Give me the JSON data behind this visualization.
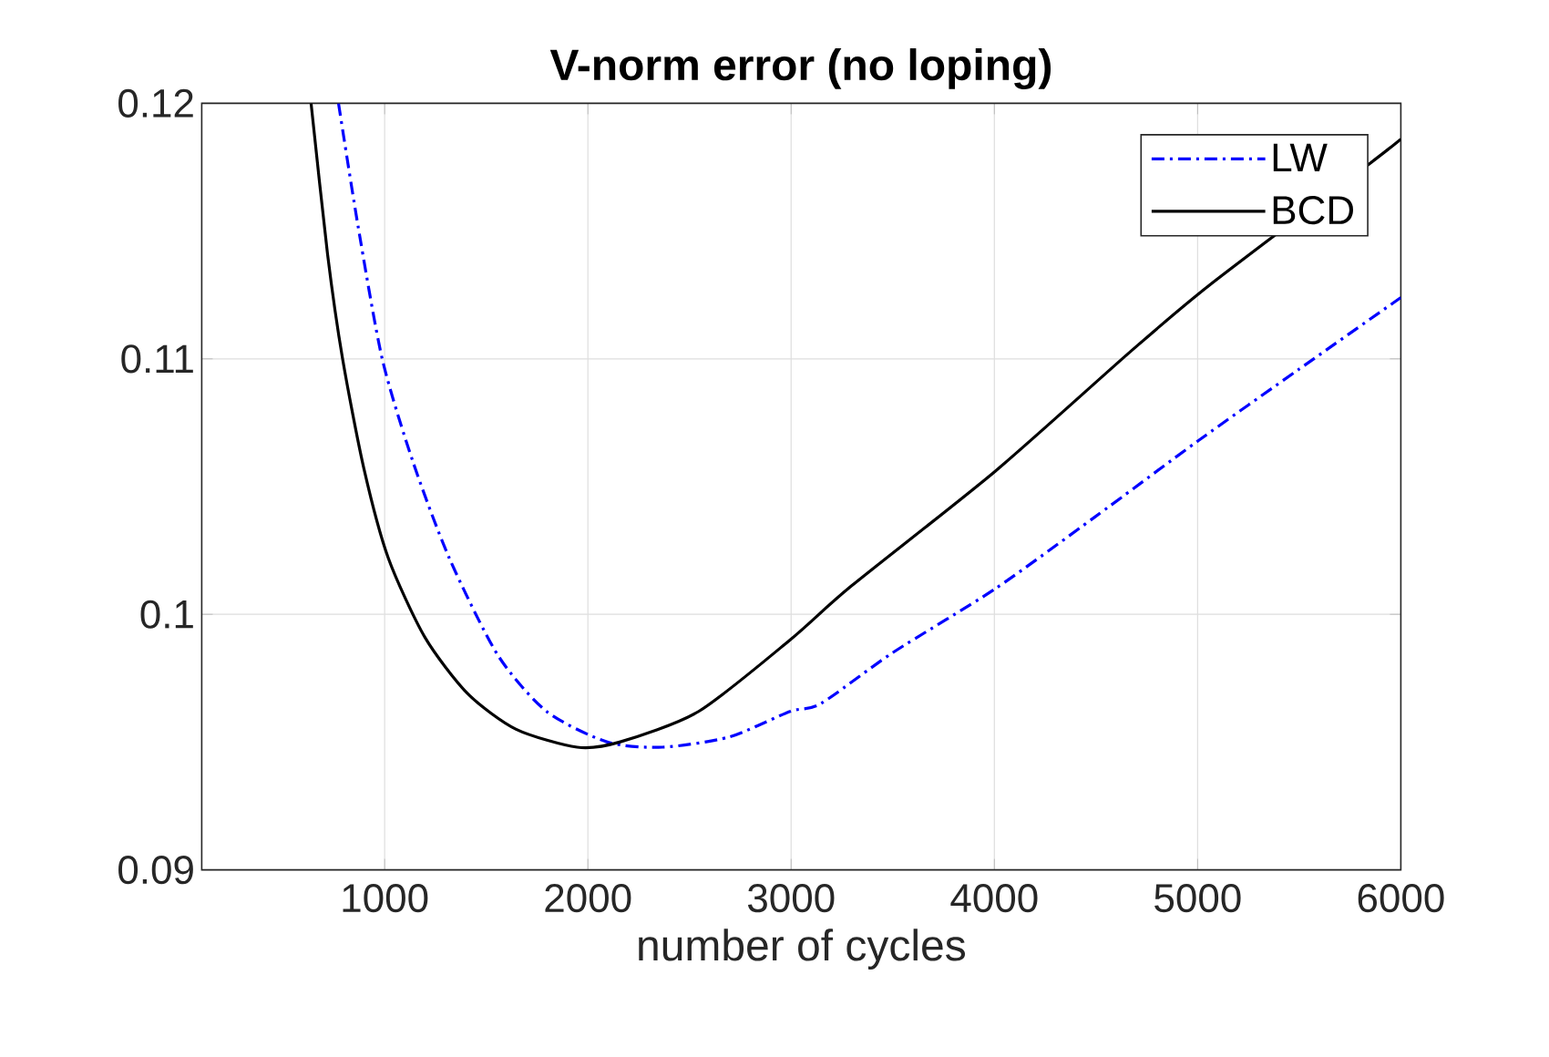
{
  "chart_data": {
    "type": "line",
    "title": "V-norm error (no loping)",
    "xlabel": "number of cycles",
    "xlim": [
      100,
      6000
    ],
    "ylim": [
      0.09,
      0.12
    ],
    "xticks": [
      1000,
      2000,
      3000,
      4000,
      5000,
      6000
    ],
    "yticks": [
      0.09,
      0.1,
      0.11,
      0.12
    ],
    "grid": true,
    "legend": "top right",
    "series": [
      {
        "name": "LW",
        "color": "#0000ff",
        "line_style": "dashdot",
        "x": [
          773,
          869,
          988,
          1138,
          1318,
          1557,
          1797,
          2096,
          2366,
          2695,
          2995,
          3145,
          3500,
          4004,
          4493,
          5004,
          5500,
          6000
        ],
        "values": [
          0.12,
          0.1152,
          0.11,
          0.106,
          0.1022,
          0.0984,
          0.0962,
          0.095,
          0.0948,
          0.0952,
          0.0962,
          0.0965,
          0.0985,
          0.101,
          0.1038,
          0.1068,
          0.1096,
          0.1124
        ]
      },
      {
        "name": "BCD",
        "color": "#000000",
        "line_style": "solid",
        "x": [
          638,
          719,
          793,
          898,
          1018,
          1198,
          1408,
          1647,
          1947,
          2156,
          2545,
          2995,
          3295,
          4004,
          4672,
          5061,
          5840,
          6000
        ],
        "values": [
          0.12,
          0.1141,
          0.11,
          0.1057,
          0.1022,
          0.0991,
          0.0969,
          0.0955,
          0.0948,
          0.095,
          0.0962,
          0.099,
          0.1011,
          0.1056,
          0.1103,
          0.1129,
          0.1176,
          0.1186
        ]
      }
    ]
  }
}
